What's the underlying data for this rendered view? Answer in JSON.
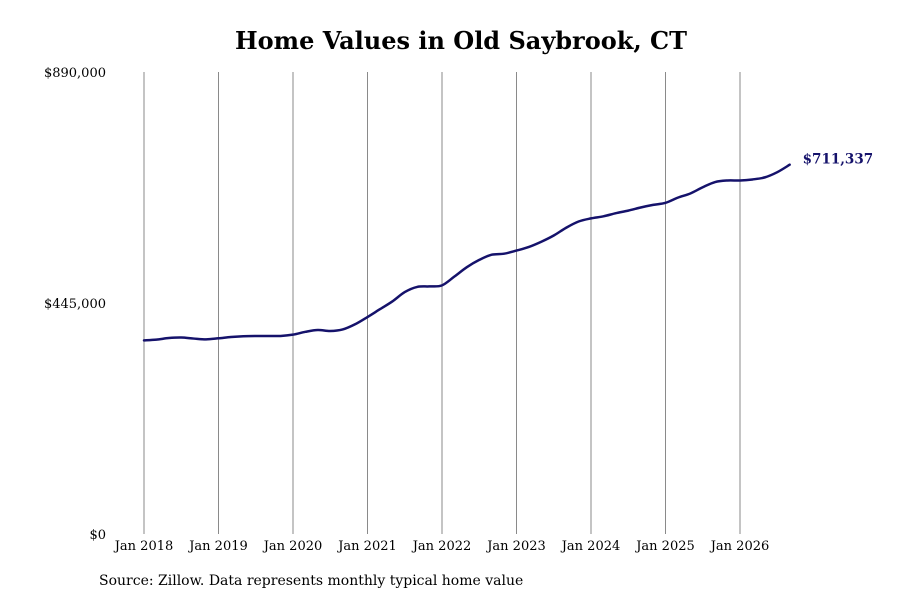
{
  "chart_data": {
    "type": "line",
    "title": "Home Values in Old Saybrook, CT",
    "xlabel": "",
    "ylabel": "",
    "ylim": [
      0,
      890000
    ],
    "yticks": [
      0,
      445000,
      890000
    ],
    "ytick_labels": [
      "$0",
      "$445,000",
      "$890,000"
    ],
    "xticks": [
      "Jan 2018",
      "Jan 2019",
      "Jan 2020",
      "Jan 2021",
      "Jan 2022",
      "Jan 2023",
      "Jan 2024",
      "Jan 2025",
      "Jan 2026"
    ],
    "grid": "vertical",
    "colors": {
      "line": "#15126b",
      "grid": "#8a8a8a"
    },
    "end_label": "$711,337",
    "series": [
      {
        "points": [
          [
            "2018-01",
            373000
          ],
          [
            "2018-03",
            374500
          ],
          [
            "2018-05",
            377500
          ],
          [
            "2018-07",
            378500
          ],
          [
            "2018-09",
            376500
          ],
          [
            "2018-11",
            375000
          ],
          [
            "2019-01",
            377000
          ],
          [
            "2019-03",
            379500
          ],
          [
            "2019-05",
            381000
          ],
          [
            "2019-07",
            381500
          ],
          [
            "2019-09",
            381500
          ],
          [
            "2019-11",
            381500
          ],
          [
            "2020-01",
            384000
          ],
          [
            "2020-03",
            389500
          ],
          [
            "2020-05",
            393000
          ],
          [
            "2020-07",
            391000
          ],
          [
            "2020-09",
            394000
          ],
          [
            "2020-11",
            404000
          ],
          [
            "2021-01",
            418000
          ],
          [
            "2021-03",
            433000
          ],
          [
            "2021-05",
            448000
          ],
          [
            "2021-07",
            466000
          ],
          [
            "2021-09",
            476000
          ],
          [
            "2021-11",
            477000
          ],
          [
            "2022-01",
            479000
          ],
          [
            "2022-03",
            496000
          ],
          [
            "2022-05",
            514000
          ],
          [
            "2022-07",
            528000
          ],
          [
            "2022-09",
            538000
          ],
          [
            "2022-11",
            540000
          ],
          [
            "2023-01",
            546000
          ],
          [
            "2023-03",
            553000
          ],
          [
            "2023-05",
            563000
          ],
          [
            "2023-07",
            575000
          ],
          [
            "2023-09",
            590000
          ],
          [
            "2023-11",
            602000
          ],
          [
            "2024-01",
            608000
          ],
          [
            "2024-03",
            612000
          ],
          [
            "2024-05",
            618000
          ],
          [
            "2024-07",
            623000
          ],
          [
            "2024-09",
            629000
          ],
          [
            "2024-11",
            634000
          ],
          [
            "2025-01",
            638000
          ],
          [
            "2025-03",
            648000
          ],
          [
            "2025-05",
            656000
          ],
          [
            "2025-07",
            668000
          ],
          [
            "2025-09",
            678000
          ],
          [
            "2025-11",
            681000
          ],
          [
            "2026-01",
            681000
          ],
          [
            "2026-03",
            683000
          ],
          [
            "2026-05",
            687000
          ],
          [
            "2026-07",
            697000
          ],
          [
            "2026-09",
            711337
          ]
        ]
      }
    ]
  },
  "source_note": "Source: Zillow. Data represents monthly typical home value"
}
